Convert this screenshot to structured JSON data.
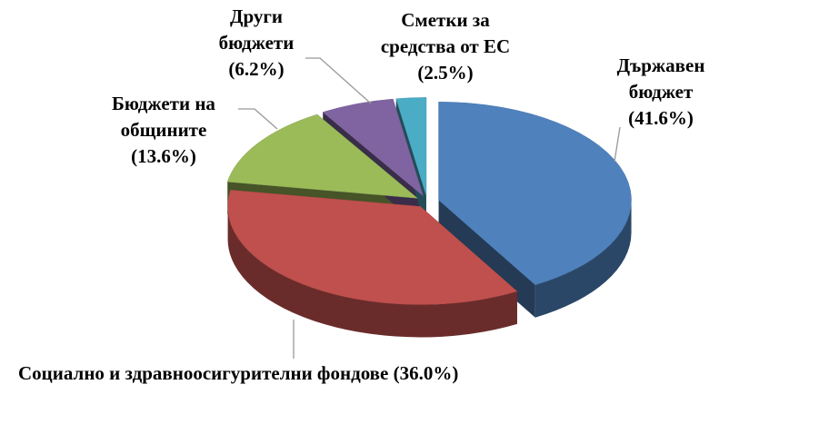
{
  "chart_data": {
    "type": "pie3d",
    "categories": [
      "Държавен бюджет",
      "Социално и здравноосигурителни фондове",
      "Бюджети на общините",
      "Други бюджети",
      "Сметки за средства от ЕС"
    ],
    "values": [
      41.6,
      36.0,
      13.6,
      6.2,
      2.5
    ],
    "value_labels": [
      "(41.6%)",
      "(36.0%)",
      "(13.6%)",
      "(6.2%)",
      "(2.5%)"
    ],
    "colors": [
      "#4f81bd",
      "#c0504d",
      "#9bbb59",
      "#8064a2",
      "#4bacc6"
    ]
  }
}
